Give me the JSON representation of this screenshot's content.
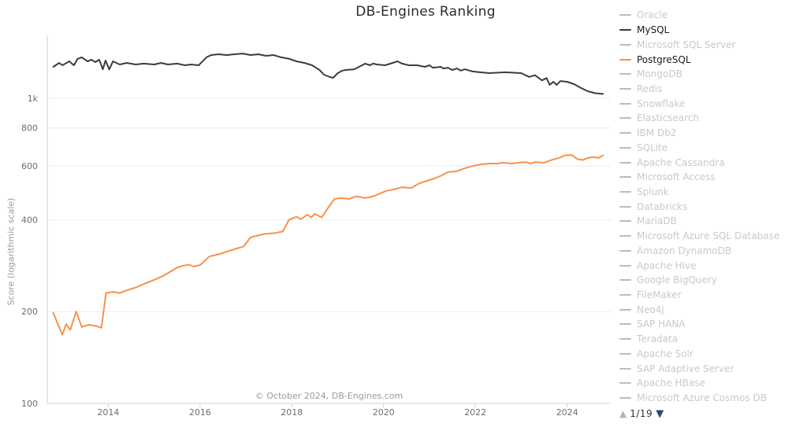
{
  "title": "DB-Engines Ranking",
  "footer": "© October 2024, DB-Engines.com",
  "colors": {
    "mysql_line": "#3c3c3c",
    "postgresql_line": "#f5924d",
    "axis": "#c5d4e3",
    "grid": "#ececec",
    "tick_text": "#6e6e6e",
    "title_text": "#2b2b2b",
    "footer_text": "#9a9a9a",
    "legend_inactive_text": "#c9c9c9",
    "legend_inactive_swatch": "#bcbcbc",
    "legend_active_text": "#1a1a1a",
    "pager_up": "#b5b5b5",
    "pager_down": "#27477a",
    "pager_text": "#333333"
  },
  "legend": {
    "items": [
      {
        "label": "Oracle",
        "active": false
      },
      {
        "label": "MySQL",
        "active": true,
        "color": "#3c3c3c"
      },
      {
        "label": "Microsoft SQL Server",
        "active": false
      },
      {
        "label": "PostgreSQL",
        "active": true,
        "color": "#f5924d"
      },
      {
        "label": "MongoDB",
        "active": false
      },
      {
        "label": "Redis",
        "active": false
      },
      {
        "label": "Snowflake",
        "active": false
      },
      {
        "label": "Elasticsearch",
        "active": false
      },
      {
        "label": "IBM Db2",
        "active": false
      },
      {
        "label": "SQLite",
        "active": false
      },
      {
        "label": "Apache Cassandra",
        "active": false
      },
      {
        "label": "Microsoft Access",
        "active": false
      },
      {
        "label": "Splunk",
        "active": false
      },
      {
        "label": "Databricks",
        "active": false
      },
      {
        "label": "MariaDB",
        "active": false
      },
      {
        "label": "Microsoft Azure SQL Database",
        "active": false
      },
      {
        "label": "Amazon DynamoDB",
        "active": false
      },
      {
        "label": "Apache Hive",
        "active": false
      },
      {
        "label": "Google BigQuery",
        "active": false
      },
      {
        "label": "FileMaker",
        "active": false
      },
      {
        "label": "Neo4j",
        "active": false
      },
      {
        "label": "SAP HANA",
        "active": false
      },
      {
        "label": "Teradata",
        "active": false
      },
      {
        "label": "Apache Solr",
        "active": false
      },
      {
        "label": "SAP Adaptive Server",
        "active": false
      },
      {
        "label": "Apache HBase",
        "active": false
      },
      {
        "label": "Microsoft Azure Cosmos DB",
        "active": false
      }
    ],
    "pager": {
      "up_icon": "▲",
      "label": "1/19",
      "down_icon": "▼"
    }
  },
  "chart_data": {
    "type": "line",
    "title": "DB-Engines Ranking",
    "xlabel": "",
    "ylabel": "Score (logarithmic scale)",
    "y_scale": "log",
    "grid": "horizontal",
    "legend_position": "right",
    "xlim": [
      2012.67,
      2024.95
    ],
    "ylim": [
      100,
      1450
    ],
    "x_ticks": [
      2014,
      2016,
      2018,
      2020,
      2022,
      2024
    ],
    "y_ticks": [
      100,
      200,
      400,
      600,
      800,
      1000
    ],
    "y_tick_labels": [
      "100",
      "200",
      "400",
      "600",
      "800",
      "1k"
    ],
    "series": [
      {
        "name": "MySQL",
        "color": "#3c3c3c",
        "points": [
          [
            2012.8,
            1268
          ],
          [
            2012.93,
            1306
          ],
          [
            2013.0,
            1283
          ],
          [
            2013.15,
            1322
          ],
          [
            2013.25,
            1283
          ],
          [
            2013.33,
            1346
          ],
          [
            2013.42,
            1362
          ],
          [
            2013.55,
            1322
          ],
          [
            2013.63,
            1338
          ],
          [
            2013.72,
            1314
          ],
          [
            2013.8,
            1338
          ],
          [
            2013.88,
            1245
          ],
          [
            2013.94,
            1330
          ],
          [
            2014.02,
            1243
          ],
          [
            2014.1,
            1322
          ],
          [
            2014.25,
            1291
          ],
          [
            2014.4,
            1306
          ],
          [
            2014.6,
            1291
          ],
          [
            2014.77,
            1299
          ],
          [
            2015.0,
            1291
          ],
          [
            2015.15,
            1306
          ],
          [
            2015.3,
            1291
          ],
          [
            2015.5,
            1299
          ],
          [
            2015.67,
            1283
          ],
          [
            2015.8,
            1291
          ],
          [
            2015.97,
            1283
          ],
          [
            2016.14,
            1362
          ],
          [
            2016.24,
            1386
          ],
          [
            2016.4,
            1394
          ],
          [
            2016.58,
            1386
          ],
          [
            2016.75,
            1394
          ],
          [
            2016.93,
            1402
          ],
          [
            2017.1,
            1386
          ],
          [
            2017.27,
            1394
          ],
          [
            2017.44,
            1378
          ],
          [
            2017.6,
            1386
          ],
          [
            2017.77,
            1362
          ],
          [
            2017.95,
            1346
          ],
          [
            2018.1,
            1322
          ],
          [
            2018.27,
            1306
          ],
          [
            2018.44,
            1283
          ],
          [
            2018.6,
            1240
          ],
          [
            2018.7,
            1195
          ],
          [
            2018.83,
            1174
          ],
          [
            2018.9,
            1167
          ],
          [
            2019.0,
            1209
          ],
          [
            2019.1,
            1232
          ],
          [
            2019.17,
            1238
          ],
          [
            2019.36,
            1245
          ],
          [
            2019.53,
            1283
          ],
          [
            2019.6,
            1299
          ],
          [
            2019.7,
            1283
          ],
          [
            2019.77,
            1299
          ],
          [
            2019.86,
            1291
          ],
          [
            2020.03,
            1283
          ],
          [
            2020.2,
            1306
          ],
          [
            2020.3,
            1322
          ],
          [
            2020.4,
            1299
          ],
          [
            2020.55,
            1283
          ],
          [
            2020.73,
            1283
          ],
          [
            2020.9,
            1268
          ],
          [
            2021.0,
            1283
          ],
          [
            2021.07,
            1260
          ],
          [
            2021.25,
            1268
          ],
          [
            2021.3,
            1252
          ],
          [
            2021.4,
            1260
          ],
          [
            2021.5,
            1238
          ],
          [
            2021.6,
            1252
          ],
          [
            2021.68,
            1232
          ],
          [
            2021.77,
            1245
          ],
          [
            2021.94,
            1224
          ],
          [
            2022.1,
            1217
          ],
          [
            2022.3,
            1209
          ],
          [
            2022.65,
            1217
          ],
          [
            2023.0,
            1209
          ],
          [
            2023.17,
            1175
          ],
          [
            2023.3,
            1190
          ],
          [
            2023.45,
            1145
          ],
          [
            2023.55,
            1165
          ],
          [
            2023.62,
            1107
          ],
          [
            2023.7,
            1133
          ],
          [
            2023.77,
            1107
          ],
          [
            2023.85,
            1139
          ],
          [
            2024.0,
            1133
          ],
          [
            2024.15,
            1113
          ],
          [
            2024.3,
            1081
          ],
          [
            2024.45,
            1055
          ],
          [
            2024.6,
            1040
          ],
          [
            2024.78,
            1033
          ]
        ]
      },
      {
        "name": "PostgreSQL",
        "color": "#f5924d",
        "points": [
          [
            2012.8,
            198
          ],
          [
            2012.88,
            185
          ],
          [
            2013.0,
            168
          ],
          [
            2013.08,
            182
          ],
          [
            2013.17,
            174
          ],
          [
            2013.3,
            200
          ],
          [
            2013.42,
            178
          ],
          [
            2013.58,
            181
          ],
          [
            2013.75,
            179
          ],
          [
            2013.85,
            177
          ],
          [
            2013.95,
            230
          ],
          [
            2014.1,
            232
          ],
          [
            2014.25,
            230
          ],
          [
            2014.45,
            236
          ],
          [
            2014.6,
            240
          ],
          [
            2014.8,
            247
          ],
          [
            2015.0,
            254
          ],
          [
            2015.2,
            262
          ],
          [
            2015.35,
            270
          ],
          [
            2015.5,
            279
          ],
          [
            2015.65,
            283
          ],
          [
            2015.76,
            285
          ],
          [
            2015.85,
            281
          ],
          [
            2016.0,
            284
          ],
          [
            2016.2,
            303
          ],
          [
            2016.4,
            308
          ],
          [
            2016.6,
            315
          ],
          [
            2016.8,
            322
          ],
          [
            2016.95,
            327
          ],
          [
            2017.1,
            350
          ],
          [
            2017.25,
            355
          ],
          [
            2017.45,
            360
          ],
          [
            2017.65,
            362
          ],
          [
            2017.8,
            366
          ],
          [
            2017.94,
            400
          ],
          [
            2018.1,
            409
          ],
          [
            2018.2,
            402
          ],
          [
            2018.34,
            416
          ],
          [
            2018.42,
            407
          ],
          [
            2018.5,
            418
          ],
          [
            2018.65,
            407
          ],
          [
            2018.8,
            440
          ],
          [
            2018.93,
            468
          ],
          [
            2019.07,
            471
          ],
          [
            2019.25,
            468
          ],
          [
            2019.4,
            477
          ],
          [
            2019.6,
            471
          ],
          [
            2019.77,
            477
          ],
          [
            2019.9,
            486
          ],
          [
            2020.05,
            497
          ],
          [
            2020.2,
            502
          ],
          [
            2020.4,
            511
          ],
          [
            2020.6,
            508
          ],
          [
            2020.75,
            524
          ],
          [
            2020.9,
            534
          ],
          [
            2021.1,
            546
          ],
          [
            2021.25,
            557
          ],
          [
            2021.4,
            573
          ],
          [
            2021.6,
            577
          ],
          [
            2021.77,
            590
          ],
          [
            2021.94,
            600
          ],
          [
            2022.1,
            607
          ],
          [
            2022.3,
            611
          ],
          [
            2022.5,
            611
          ],
          [
            2022.6,
            615
          ],
          [
            2022.8,
            611
          ],
          [
            2022.95,
            615
          ],
          [
            2023.1,
            618
          ],
          [
            2023.2,
            611
          ],
          [
            2023.3,
            618
          ],
          [
            2023.5,
            615
          ],
          [
            2023.66,
            628
          ],
          [
            2023.83,
            638
          ],
          [
            2023.95,
            650
          ],
          [
            2024.1,
            652
          ],
          [
            2024.23,
            631
          ],
          [
            2024.35,
            628
          ],
          [
            2024.45,
            638
          ],
          [
            2024.57,
            641
          ],
          [
            2024.68,
            638
          ],
          [
            2024.78,
            649
          ]
        ]
      }
    ]
  }
}
